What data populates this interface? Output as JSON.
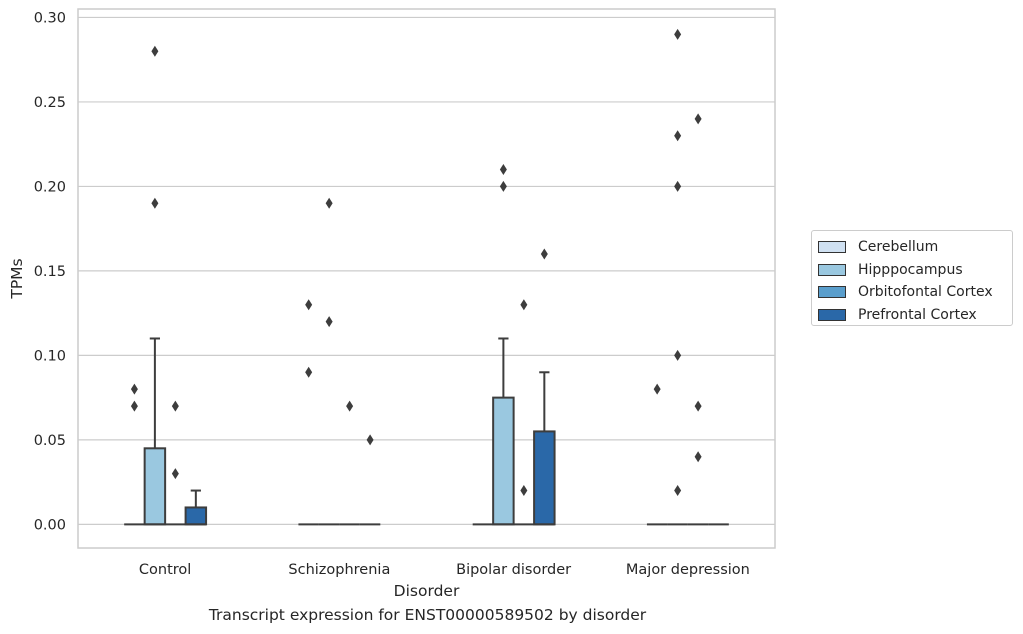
{
  "chart_data": {
    "type": "box",
    "caption": "Transcript expression for ENST00000589502 by disorder",
    "xlabel": "Disorder",
    "ylabel": "TPMs",
    "ylim": [
      -0.014,
      0.305
    ],
    "yticks": [
      "0.00",
      "0.05",
      "0.10",
      "0.15",
      "0.20",
      "0.25",
      "0.30"
    ],
    "ytick_values": [
      0,
      0.05,
      0.1,
      0.15,
      0.2,
      0.25,
      0.3
    ],
    "grid": true,
    "legend_position": "right",
    "categories": [
      "Control",
      "Schizophrenia",
      "Bipolar disorder",
      "Major depression"
    ],
    "series": [
      {
        "name": "Cerebellum",
        "color": "#d0e1f2",
        "boxes": [
          {
            "q1": 0,
            "median": 0,
            "q3": 0,
            "whisker_low": 0,
            "whisker_high": 0,
            "outliers": [
              0.07,
              0.08
            ]
          },
          {
            "q1": 0,
            "median": 0,
            "q3": 0,
            "whisker_low": 0,
            "whisker_high": 0,
            "outliers": [
              0.09,
              0.13
            ]
          },
          {
            "q1": 0,
            "median": 0,
            "q3": 0,
            "whisker_low": 0,
            "whisker_high": 0,
            "outliers": []
          },
          {
            "q1": 0,
            "median": 0,
            "q3": 0,
            "whisker_low": 0,
            "whisker_high": 0,
            "outliers": [
              0.08
            ]
          }
        ]
      },
      {
        "name": "Hipppocampus",
        "color": "#9ac8e0",
        "boxes": [
          {
            "q1": 0,
            "median": 0,
            "q3": 0.045,
            "whisker_low": 0,
            "whisker_high": 0.11,
            "outliers": [
              0.19,
              0.28
            ]
          },
          {
            "q1": 0,
            "median": 0,
            "q3": 0,
            "whisker_low": 0,
            "whisker_high": 0,
            "outliers": [
              0.12,
              0.19
            ]
          },
          {
            "q1": 0,
            "median": 0,
            "q3": 0.075,
            "whisker_low": 0,
            "whisker_high": 0.11,
            "outliers": [
              0.2,
              0.21
            ]
          },
          {
            "q1": 0,
            "median": 0,
            "q3": 0,
            "whisker_low": 0,
            "whisker_high": 0,
            "outliers": [
              0.1,
              0.2,
              0.23,
              0.02,
              0.29
            ]
          }
        ]
      },
      {
        "name": "Orbitofontal Cortex",
        "color": "#5a9ecc",
        "boxes": [
          {
            "q1": 0,
            "median": 0,
            "q3": 0,
            "whisker_low": 0,
            "whisker_high": 0,
            "outliers": [
              0.03,
              0.07
            ]
          },
          {
            "q1": 0,
            "median": 0,
            "q3": 0,
            "whisker_low": 0,
            "whisker_high": 0,
            "outliers": [
              0.07
            ]
          },
          {
            "q1": 0,
            "median": 0,
            "q3": 0,
            "whisker_low": 0,
            "whisker_high": 0,
            "outliers": [
              0.02,
              0.13
            ]
          },
          {
            "q1": 0,
            "median": 0,
            "q3": 0,
            "whisker_low": 0,
            "whisker_high": 0,
            "outliers": [
              0.04,
              0.07,
              0.24
            ]
          }
        ]
      },
      {
        "name": "Prefrontal Cortex",
        "color": "#2a68a8",
        "boxes": [
          {
            "q1": 0,
            "median": 0,
            "q3": 0.01,
            "whisker_low": 0,
            "whisker_high": 0.02,
            "outliers": []
          },
          {
            "q1": 0,
            "median": 0,
            "q3": 0,
            "whisker_low": 0,
            "whisker_high": 0,
            "outliers": [
              0.05
            ]
          },
          {
            "q1": 0,
            "median": 0,
            "q3": 0.055,
            "whisker_low": 0,
            "whisker_high": 0.09,
            "outliers": [
              0.16
            ]
          },
          {
            "q1": 0,
            "median": 0,
            "q3": 0,
            "whisker_low": 0,
            "whisker_high": 0,
            "outliers": []
          }
        ]
      }
    ]
  }
}
